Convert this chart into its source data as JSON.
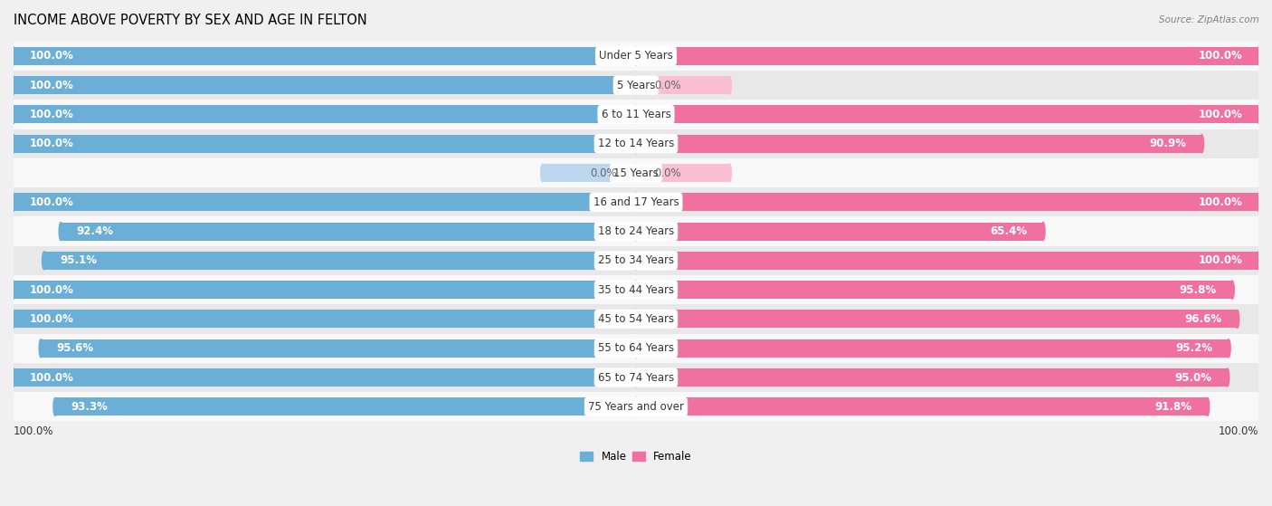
{
  "title": "INCOME ABOVE POVERTY BY SEX AND AGE IN FELTON",
  "source": "Source: ZipAtlas.com",
  "categories": [
    "Under 5 Years",
    "5 Years",
    "6 to 11 Years",
    "12 to 14 Years",
    "15 Years",
    "16 and 17 Years",
    "18 to 24 Years",
    "25 to 34 Years",
    "35 to 44 Years",
    "45 to 54 Years",
    "55 to 64 Years",
    "65 to 74 Years",
    "75 Years and over"
  ],
  "male": [
    100.0,
    100.0,
    100.0,
    100.0,
    0.0,
    100.0,
    92.4,
    95.1,
    100.0,
    100.0,
    95.6,
    100.0,
    93.3
  ],
  "female": [
    100.0,
    0.0,
    100.0,
    90.9,
    0.0,
    100.0,
    65.4,
    100.0,
    95.8,
    96.6,
    95.2,
    95.0,
    91.8
  ],
  "male_color": "#6BAED6",
  "male_zero_color": "#BDD7EE",
  "female_color": "#F070A0",
  "female_zero_color": "#FBBFD4",
  "bar_height": 0.62,
  "bg_color": "#f0f0f0",
  "row_color_odd": "#e8e8e8",
  "row_color_even": "#f8f8f8",
  "title_fontsize": 10.5,
  "label_fontsize": 8.5,
  "tick_fontsize": 8.5,
  "source_fontsize": 7.5
}
